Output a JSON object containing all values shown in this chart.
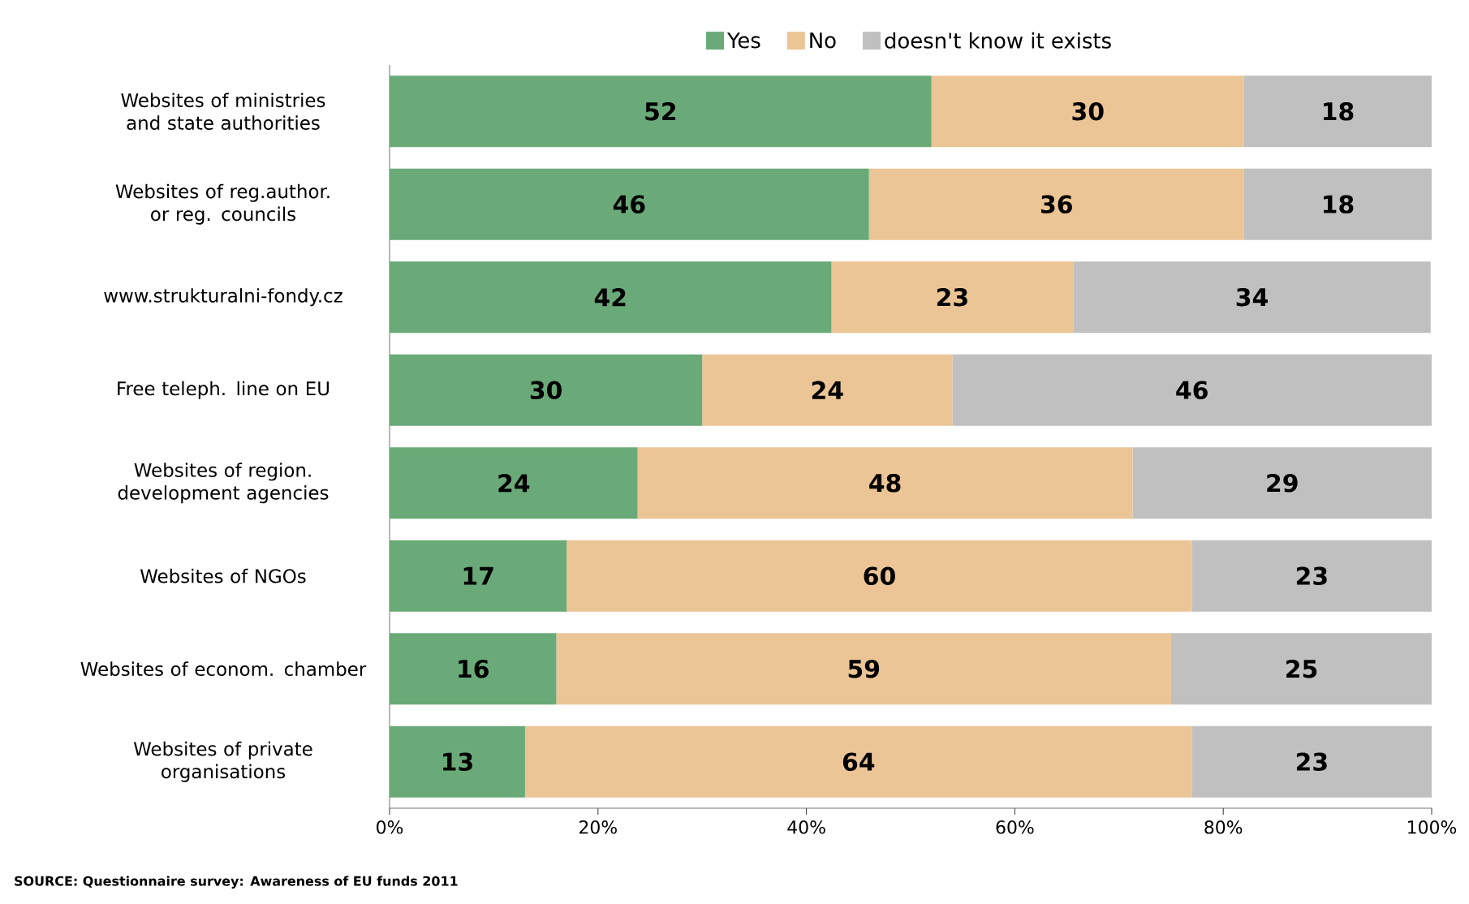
{
  "chart_data": {
    "type": "bar",
    "orientation": "horizontal",
    "stacked": true,
    "categories": [
      "Websites of ministries and state authorities",
      "Websites of reg.author. or reg. councils",
      "www.strukturalni-fondy.cz",
      "Free teleph. line on EU",
      "Websites of region. development agencies",
      "Websites of NGOs",
      "Websites of econom. chamber",
      "Websites  of private organisations"
    ],
    "series": [
      {
        "name": "Yes",
        "color": "#6aaa78",
        "values": [
          52,
          46,
          42.4,
          30,
          23.8,
          17,
          16,
          13
        ],
        "value_labels": [
          "52",
          "46",
          "42",
          "30",
          "24",
          "17",
          "16",
          "13"
        ]
      },
      {
        "name": "No",
        "color": "#ecc596",
        "values": [
          30,
          36,
          23.2,
          24,
          47.5,
          60,
          59,
          64
        ],
        "value_labels": [
          "30",
          "36",
          "23",
          "24",
          "48",
          "60",
          "59",
          "64"
        ]
      },
      {
        "name": "doesn't know it exists",
        "color": "#c0c0c0",
        "values": [
          18,
          18,
          34.3,
          46,
          28.7,
          23,
          25,
          23
        ],
        "value_labels": [
          "18",
          "18",
          "34",
          "46",
          "29",
          "23",
          "25",
          "23"
        ]
      }
    ],
    "xlim": [
      0,
      100
    ],
    "xticks": [
      {
        "value": 0,
        "label": "0%"
      },
      {
        "value": 20,
        "label": "20%"
      },
      {
        "value": 40,
        "label": "40%"
      },
      {
        "value": 60,
        "label": "60%"
      },
      {
        "value": 80,
        "label": "80%"
      },
      {
        "value": 100,
        "label": "100%"
      }
    ],
    "legend": "top",
    "grid": false,
    "annotations": [
      "SOURCE: Questionnaire survey: Awareness of EU funds 2011"
    ]
  }
}
